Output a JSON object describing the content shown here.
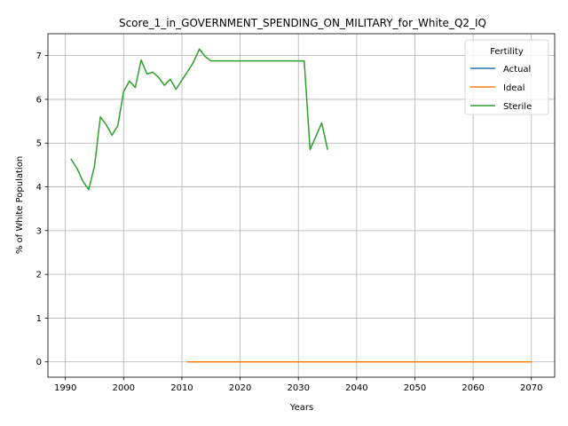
{
  "chart_data": {
    "type": "line",
    "title": "Score_1_in_GOVERNMENT_SPENDING_ON_MILITARY_for_White_Q2_IQ",
    "xlabel": "Years",
    "ylabel": "% of White Population",
    "xlim": [
      1987,
      2074
    ],
    "ylim": [
      -0.35,
      7.5
    ],
    "xticks": [
      1990,
      2000,
      2010,
      2020,
      2030,
      2040,
      2050,
      2060,
      2070
    ],
    "yticks": [
      0,
      1,
      2,
      3,
      4,
      5,
      6,
      7
    ],
    "grid": true,
    "legend": {
      "title": "Fertility",
      "placement": "top-right"
    },
    "series": [
      {
        "name": "Actual",
        "color": "#1f77b4",
        "points": [
          [
            2011,
            0
          ],
          [
            2070,
            0
          ]
        ]
      },
      {
        "name": "Ideal",
        "color": "#ff7f0e",
        "points": [
          [
            2011,
            0
          ],
          [
            2070,
            0
          ]
        ]
      },
      {
        "name": "Sterile",
        "color": "#2ca02c",
        "points": [
          [
            1991,
            4.63
          ],
          [
            1992,
            4.42
          ],
          [
            1993,
            4.13
          ],
          [
            1994,
            3.94
          ],
          [
            1995,
            4.48
          ],
          [
            1996,
            5.6
          ],
          [
            1997,
            5.42
          ],
          [
            1998,
            5.18
          ],
          [
            1999,
            5.4
          ],
          [
            2000,
            6.18
          ],
          [
            2001,
            6.42
          ],
          [
            2002,
            6.27
          ],
          [
            2003,
            6.9
          ],
          [
            2004,
            6.58
          ],
          [
            2005,
            6.62
          ],
          [
            2006,
            6.5
          ],
          [
            2007,
            6.32
          ],
          [
            2008,
            6.46
          ],
          [
            2009,
            6.23
          ],
          [
            2010,
            6.44
          ],
          [
            2011,
            6.64
          ],
          [
            2012,
            6.85
          ],
          [
            2013,
            7.15
          ],
          [
            2014,
            6.98
          ],
          [
            2015,
            6.88
          ],
          [
            2016,
            6.88
          ],
          [
            2020,
            6.88
          ],
          [
            2025,
            6.88
          ],
          [
            2030,
            6.88
          ],
          [
            2031,
            6.88
          ],
          [
            2032,
            4.85
          ],
          [
            2033,
            5.15
          ],
          [
            2034,
            5.46
          ],
          [
            2035,
            4.86
          ]
        ]
      }
    ]
  }
}
